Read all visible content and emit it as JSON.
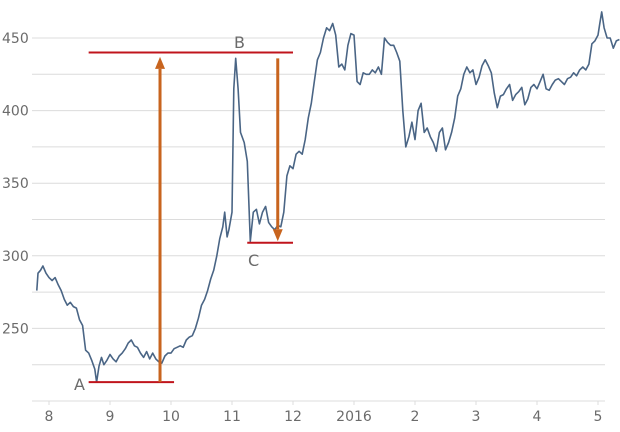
{
  "chart_data": {
    "type": "line",
    "title": "",
    "xlabel": "",
    "ylabel": "",
    "ylim": [
      200,
      460
    ],
    "grid": true,
    "legend": "none",
    "y_ticks_labeled": [
      250,
      300,
      350,
      400,
      450
    ],
    "y_gridlines": [
      225,
      250,
      275,
      300,
      325,
      350,
      375,
      400,
      425,
      450
    ],
    "x_tick_labels": [
      "8",
      "9",
      "10",
      "11",
      "12",
      "2016",
      "2",
      "3",
      "4",
      "5"
    ],
    "series": [
      {
        "name": "price",
        "color": "#4a6585",
        "points": [
          [
            7.8,
            276
          ],
          [
            7.82,
            288
          ],
          [
            7.86,
            290
          ],
          [
            7.9,
            293
          ],
          [
            7.95,
            288
          ],
          [
            8.0,
            285
          ],
          [
            8.05,
            283
          ],
          [
            8.1,
            285
          ],
          [
            8.15,
            280
          ],
          [
            8.2,
            276
          ],
          [
            8.25,
            270
          ],
          [
            8.3,
            266
          ],
          [
            8.35,
            268
          ],
          [
            8.4,
            265
          ],
          [
            8.45,
            264
          ],
          [
            8.5,
            256
          ],
          [
            8.55,
            252
          ],
          [
            8.6,
            235
          ],
          [
            8.65,
            233
          ],
          [
            8.7,
            228
          ],
          [
            8.75,
            222
          ],
          [
            8.78,
            213
          ],
          [
            8.82,
            224
          ],
          [
            8.86,
            230
          ],
          [
            8.9,
            225
          ],
          [
            8.95,
            228
          ],
          [
            9.0,
            232
          ],
          [
            9.05,
            229
          ],
          [
            9.1,
            227
          ],
          [
            9.15,
            231
          ],
          [
            9.2,
            233
          ],
          [
            9.25,
            236
          ],
          [
            9.3,
            240
          ],
          [
            9.35,
            242
          ],
          [
            9.4,
            238
          ],
          [
            9.45,
            237
          ],
          [
            9.5,
            233
          ],
          [
            9.55,
            230
          ],
          [
            9.6,
            234
          ],
          [
            9.65,
            229
          ],
          [
            9.7,
            233
          ],
          [
            9.75,
            229
          ],
          [
            9.8,
            227
          ],
          [
            9.85,
            226
          ],
          [
            9.9,
            231
          ],
          [
            9.95,
            233
          ],
          [
            10.0,
            233
          ],
          [
            10.05,
            236
          ],
          [
            10.1,
            237
          ],
          [
            10.15,
            238
          ],
          [
            10.2,
            237
          ],
          [
            10.25,
            242
          ],
          [
            10.3,
            244
          ],
          [
            10.35,
            245
          ],
          [
            10.4,
            250
          ],
          [
            10.45,
            257
          ],
          [
            10.5,
            266
          ],
          [
            10.55,
            270
          ],
          [
            10.6,
            276
          ],
          [
            10.65,
            284
          ],
          [
            10.7,
            290
          ],
          [
            10.75,
            300
          ],
          [
            10.8,
            312
          ],
          [
            10.85,
            320
          ],
          [
            10.88,
            330
          ],
          [
            10.92,
            313
          ],
          [
            10.95,
            318
          ],
          [
            11.0,
            330
          ],
          [
            11.03,
            415
          ],
          [
            11.06,
            436
          ],
          [
            11.1,
            415
          ],
          [
            11.14,
            385
          ],
          [
            11.2,
            378
          ],
          [
            11.25,
            365
          ],
          [
            11.3,
            310
          ],
          [
            11.35,
            330
          ],
          [
            11.4,
            332
          ],
          [
            11.45,
            322
          ],
          [
            11.5,
            330
          ],
          [
            11.55,
            334
          ],
          [
            11.6,
            323
          ],
          [
            11.65,
            320
          ],
          [
            11.7,
            318
          ],
          [
            11.75,
            321
          ],
          [
            11.8,
            320
          ],
          [
            11.85,
            330
          ],
          [
            11.9,
            355
          ],
          [
            11.95,
            362
          ],
          [
            12.0,
            360
          ],
          [
            12.05,
            370
          ],
          [
            12.1,
            372
          ],
          [
            12.15,
            370
          ],
          [
            12.2,
            380
          ],
          [
            12.25,
            395
          ],
          [
            12.3,
            405
          ],
          [
            12.35,
            420
          ],
          [
            12.4,
            435
          ],
          [
            12.45,
            440
          ],
          [
            12.5,
            450
          ],
          [
            12.55,
            457
          ],
          [
            12.6,
            455
          ],
          [
            12.65,
            460
          ],
          [
            12.7,
            452
          ],
          [
            12.75,
            430
          ],
          [
            12.8,
            432
          ],
          [
            12.85,
            428
          ],
          [
            12.9,
            445
          ],
          [
            12.95,
            453
          ],
          [
            13.0,
            452
          ],
          [
            13.05,
            420
          ],
          [
            13.1,
            418
          ],
          [
            13.15,
            426
          ],
          [
            13.2,
            425
          ],
          [
            13.25,
            425
          ],
          [
            13.3,
            428
          ],
          [
            13.35,
            426
          ],
          [
            13.4,
            430
          ],
          [
            13.45,
            425
          ],
          [
            13.5,
            450
          ],
          [
            13.55,
            447
          ],
          [
            13.6,
            445
          ],
          [
            13.65,
            445
          ],
          [
            13.7,
            440
          ],
          [
            13.75,
            434
          ],
          [
            13.8,
            400
          ],
          [
            13.85,
            375
          ],
          [
            13.9,
            382
          ],
          [
            13.95,
            392
          ],
          [
            14.0,
            380
          ],
          [
            14.05,
            400
          ],
          [
            14.1,
            405
          ],
          [
            14.15,
            385
          ],
          [
            14.2,
            388
          ],
          [
            14.25,
            382
          ],
          [
            14.3,
            378
          ],
          [
            14.35,
            372
          ],
          [
            14.4,
            385
          ],
          [
            14.45,
            388
          ],
          [
            14.5,
            373
          ],
          [
            14.55,
            378
          ],
          [
            14.6,
            385
          ],
          [
            14.65,
            395
          ],
          [
            14.7,
            410
          ],
          [
            14.75,
            415
          ],
          [
            14.8,
            425
          ],
          [
            14.85,
            430
          ],
          [
            14.9,
            426
          ],
          [
            14.95,
            428
          ],
          [
            15.0,
            418
          ],
          [
            15.05,
            423
          ],
          [
            15.1,
            431
          ],
          [
            15.15,
            435
          ],
          [
            15.2,
            431
          ],
          [
            15.25,
            426
          ],
          [
            15.3,
            412
          ],
          [
            15.35,
            402
          ],
          [
            15.4,
            410
          ],
          [
            15.45,
            411
          ],
          [
            15.5,
            415
          ],
          [
            15.55,
            418
          ],
          [
            15.6,
            407
          ],
          [
            15.65,
            411
          ],
          [
            15.7,
            413
          ],
          [
            15.75,
            416
          ],
          [
            15.8,
            404
          ],
          [
            15.85,
            408
          ],
          [
            15.9,
            416
          ],
          [
            15.95,
            418
          ],
          [
            16.0,
            415
          ],
          [
            16.05,
            420
          ],
          [
            16.1,
            425
          ],
          [
            16.15,
            415
          ],
          [
            16.2,
            414
          ],
          [
            16.25,
            418
          ],
          [
            16.3,
            421
          ],
          [
            16.35,
            422
          ],
          [
            16.4,
            420
          ],
          [
            16.45,
            418
          ],
          [
            16.5,
            422
          ],
          [
            16.55,
            423
          ],
          [
            16.6,
            426
          ],
          [
            16.65,
            424
          ],
          [
            16.7,
            428
          ],
          [
            16.75,
            430
          ],
          [
            16.8,
            428
          ],
          [
            16.85,
            432
          ],
          [
            16.9,
            446
          ],
          [
            16.95,
            448
          ],
          [
            17.0,
            452
          ],
          [
            17.03,
            460
          ],
          [
            17.06,
            468
          ],
          [
            17.1,
            457
          ],
          [
            17.15,
            450
          ],
          [
            17.2,
            450
          ],
          [
            17.25,
            443
          ],
          [
            17.3,
            448
          ],
          [
            17.35,
            449
          ]
        ]
      }
    ],
    "annotations": {
      "points": [
        {
          "label": "A",
          "value": 213
        },
        {
          "label": "B",
          "value": 440
        },
        {
          "label": "C",
          "value": 309
        }
      ],
      "horizontal_lines": [
        {
          "name": "A-level",
          "y": 213,
          "x_from": 8.65,
          "x_to": 10.05,
          "color": "#c0141c"
        },
        {
          "name": "B-level",
          "y": 440,
          "x_from": 8.65,
          "x_to": 12.0,
          "color": "#c0141c"
        },
        {
          "name": "C-level",
          "y": 309,
          "x_from": 11.25,
          "x_to": 12.0,
          "color": "#c0141c"
        }
      ],
      "arrows": [
        {
          "name": "A-to-B rise",
          "x": 9.82,
          "y_from": 213,
          "y_to": 437,
          "direction": "up",
          "color": "#c8641e"
        },
        {
          "name": "B-to-C drop",
          "x": 11.75,
          "y_from": 436,
          "y_to": 310,
          "direction": "down",
          "color": "#c8641e"
        }
      ]
    }
  },
  "colors": {
    "line": "#4a6585",
    "level_line": "#c0141c",
    "arrow": "#c8641e",
    "grid": "#dcdcdc",
    "tick_text": "#6b6b6b"
  }
}
